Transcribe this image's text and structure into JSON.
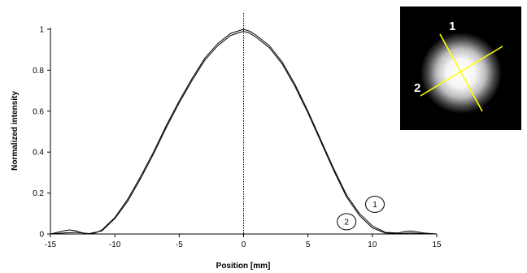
{
  "chart_data": {
    "type": "line",
    "title": "",
    "xlabel": "Position [mm]",
    "ylabel": "Normalized intensity",
    "xlim": [
      -15,
      15
    ],
    "ylim": [
      0,
      1
    ],
    "xticks": [
      -15,
      -10,
      -5,
      0,
      5,
      10,
      15
    ],
    "xtick_labels": [
      "-15",
      "-10",
      "-5",
      "0",
      "5",
      "10",
      "15"
    ],
    "yticks": [
      0,
      0.2,
      0.4,
      0.6,
      0.8,
      1
    ],
    "ytick_labels": [
      "0",
      "0.2",
      "0.4",
      "0.6",
      "0.8",
      "1"
    ],
    "grid": false,
    "legend": "none",
    "series": [
      {
        "x": [
          -15,
          -14,
          -13.5,
          -13,
          -12.5,
          -12,
          -11.5,
          -11,
          -10,
          -9,
          -8,
          -7,
          -6,
          -5,
          -4,
          -3,
          -2,
          -1,
          -0.5,
          0,
          0.5,
          1,
          2,
          3,
          4,
          5,
          6,
          7,
          8,
          9,
          10,
          11,
          12,
          12.5,
          13,
          14,
          15
        ],
        "y": [
          0,
          0.015,
          0.02,
          0.015,
          0.005,
          0,
          0.005,
          0.02,
          0.08,
          0.17,
          0.28,
          0.4,
          0.53,
          0.65,
          0.76,
          0.86,
          0.93,
          0.98,
          0.99,
          1.0,
          0.99,
          0.97,
          0.92,
          0.84,
          0.73,
          0.6,
          0.46,
          0.32,
          0.19,
          0.1,
          0.04,
          0.008,
          0.005,
          0.012,
          0.015,
          0.005,
          0
        ]
      },
      {
        "x": [
          -15,
          -14,
          -13,
          -12,
          -11,
          -10,
          -9,
          -8,
          -7,
          -6,
          -5,
          -4,
          -3,
          -2,
          -1,
          -0.5,
          0,
          0.5,
          1,
          2,
          3,
          4,
          5,
          6,
          7,
          8,
          9,
          10,
          11,
          12,
          13,
          14,
          15
        ],
        "y": [
          0,
          0.005,
          0.008,
          0.002,
          0.015,
          0.075,
          0.16,
          0.27,
          0.39,
          0.52,
          0.64,
          0.75,
          0.85,
          0.92,
          0.97,
          0.98,
          0.99,
          0.98,
          0.96,
          0.91,
          0.83,
          0.72,
          0.59,
          0.45,
          0.31,
          0.18,
          0.09,
          0.03,
          0.005,
          0.002,
          0.005,
          0.002,
          0
        ]
      }
    ],
    "center_line_x": 0,
    "callouts": [
      {
        "text": "1",
        "x": 10.2,
        "y": 0.145
      },
      {
        "text": "2",
        "x": 8.0,
        "y": 0.06
      }
    ]
  },
  "inset": {
    "labels": [
      "1",
      "2"
    ],
    "line_color": "#ffff00",
    "background": "#000000"
  },
  "colors": {
    "line": "#000000",
    "axis": "#000000"
  }
}
